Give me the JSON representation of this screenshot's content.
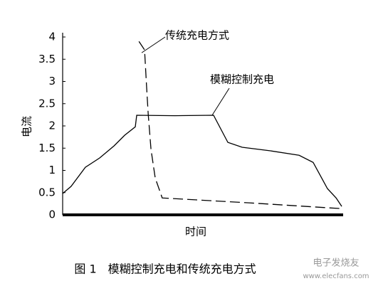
{
  "chart_data": {
    "type": "line",
    "y_label": "电流",
    "x_label": "时间",
    "caption": "图 1　模糊控制充电和传统充电方式",
    "xlim": [
      0,
      100
    ],
    "ylim": [
      0,
      4
    ],
    "yticks": [
      0,
      0.5,
      1,
      1.5,
      2,
      2.5,
      3,
      3.5,
      4
    ],
    "series": [
      {
        "name": "模糊控制充电",
        "color": "#000000",
        "line_style": "solid",
        "x": [
          0,
          3,
          8.1,
          13.2,
          18.3,
          22.1,
          25.9,
          26.4,
          40,
          53.8,
          58.9,
          64,
          74.1,
          84.3,
          89.3,
          94.4,
          97.5,
          99.5
        ],
        "values": [
          0.48,
          0.64,
          1.07,
          1.28,
          1.55,
          1.79,
          1.98,
          2.24,
          2.23,
          2.24,
          1.63,
          1.52,
          1.44,
          1.34,
          1.18,
          0.59,
          0.38,
          0.19
        ]
      },
      {
        "name": "传统充电方式",
        "color": "#000000",
        "line_style": "dashed",
        "x": [
          27.2,
          29.2,
          29.9,
          30.5,
          31.5,
          33,
          35.5,
          66.5,
          99.5
        ],
        "values": [
          3.9,
          3.71,
          2.91,
          2.27,
          1.47,
          0.83,
          0.38,
          0.27,
          0.14
        ]
      }
    ]
  },
  "watermark": {
    "name": "电子发烧友",
    "url": "www.elecfans.com"
  }
}
